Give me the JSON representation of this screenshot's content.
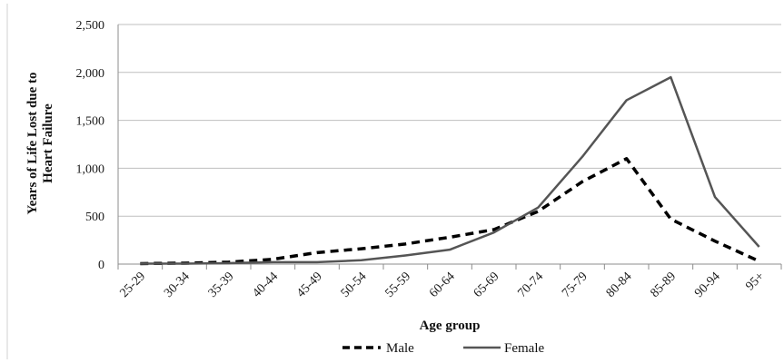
{
  "chart_data": {
    "type": "line",
    "categories": [
      "25-29",
      "30-34",
      "35-39",
      "40-44",
      "45-49",
      "50-54",
      "55-59",
      "60-64",
      "65-69",
      "70-74",
      "75-79",
      "80-84",
      "85-89",
      "90-94",
      "95+"
    ],
    "series": [
      {
        "name": "Male",
        "values": [
          5,
          10,
          20,
          50,
          120,
          160,
          210,
          280,
          360,
          550,
          860,
          1100,
          470,
          240,
          30
        ],
        "color": "#000000",
        "style": "dashed"
      },
      {
        "name": "Female",
        "values": [
          5,
          5,
          10,
          20,
          20,
          40,
          90,
          150,
          330,
          590,
          1120,
          1710,
          1950,
          700,
          180
        ],
        "color": "#555555",
        "style": "solid"
      }
    ],
    "xlabel": "Age group",
    "ylabel": "Years of Life Lost due to Heart Failure",
    "ylim": [
      0,
      2500
    ],
    "yticks": [
      0,
      500,
      1000,
      1500,
      2000,
      2500
    ],
    "ytick_labels": [
      "0",
      "500",
      "1,000",
      "1,500",
      "2,000",
      "2,500"
    ],
    "grid": "horizontal",
    "legend": "bottom"
  }
}
